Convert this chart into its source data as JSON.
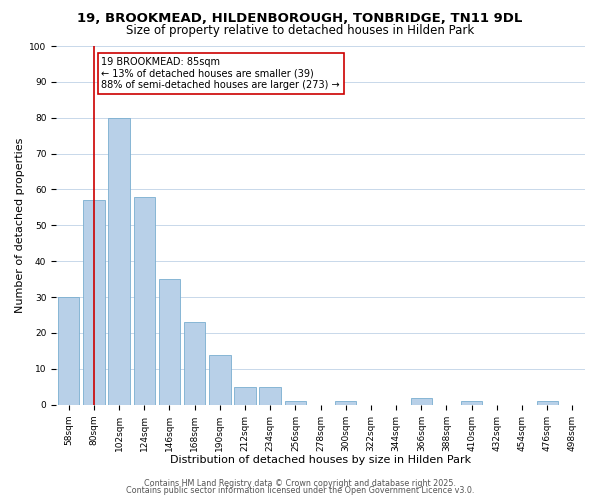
{
  "title": "19, BROOKMEAD, HILDENBOROUGH, TONBRIDGE, TN11 9DL",
  "subtitle": "Size of property relative to detached houses in Hilden Park",
  "xlabel": "Distribution of detached houses by size in Hilden Park",
  "ylabel": "Number of detached properties",
  "bar_labels": [
    "58sqm",
    "80sqm",
    "102sqm",
    "124sqm",
    "146sqm",
    "168sqm",
    "190sqm",
    "212sqm",
    "234sqm",
    "256sqm",
    "278sqm",
    "300sqm",
    "322sqm",
    "344sqm",
    "366sqm",
    "388sqm",
    "410sqm",
    "432sqm",
    "454sqm",
    "476sqm",
    "498sqm"
  ],
  "bar_values": [
    30,
    57,
    80,
    58,
    35,
    23,
    14,
    5,
    5,
    1,
    0,
    1,
    0,
    0,
    2,
    0,
    1,
    0,
    0,
    1,
    0
  ],
  "bar_color": "#b8d0e8",
  "bar_edge_color": "#7aaed0",
  "vline_x": 1,
  "vline_color": "#cc0000",
  "ylim": [
    0,
    100
  ],
  "yticks": [
    0,
    10,
    20,
    30,
    40,
    50,
    60,
    70,
    80,
    90,
    100
  ],
  "annotation_title": "19 BROOKMEAD: 85sqm",
  "annotation_line1": "← 13% of detached houses are smaller (39)",
  "annotation_line2": "88% of semi-detached houses are larger (273) →",
  "annotation_box_color": "#ffffff",
  "annotation_box_edge": "#cc0000",
  "footer1": "Contains HM Land Registry data © Crown copyright and database right 2025.",
  "footer2": "Contains public sector information licensed under the Open Government Licence v3.0.",
  "background_color": "#ffffff",
  "grid_color": "#c8d8ea",
  "title_fontsize": 9.5,
  "subtitle_fontsize": 8.5,
  "xlabel_fontsize": 8,
  "ylabel_fontsize": 8,
  "tick_fontsize": 6.5,
  "annotation_fontsize": 7,
  "footer_fontsize": 5.8
}
